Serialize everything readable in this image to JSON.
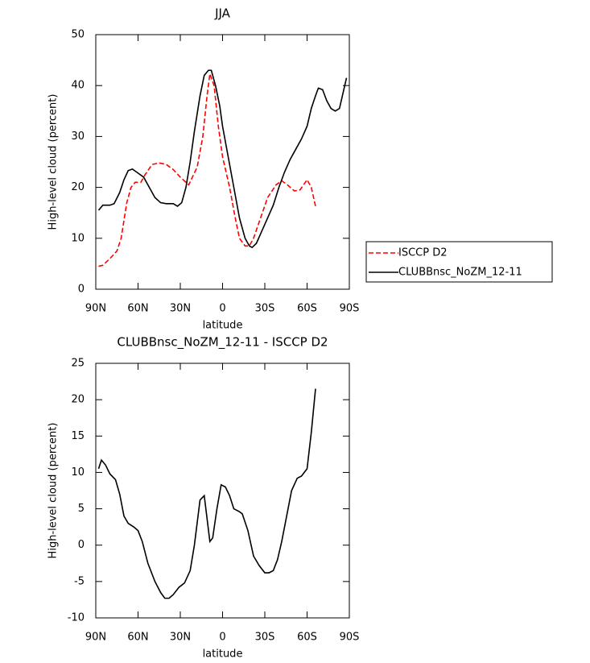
{
  "chart_data": [
    {
      "type": "line",
      "title": "JJA",
      "xlabel": "latitude",
      "ylabel": "High-level cloud (percent)",
      "xlim": [
        90,
        -90
      ],
      "ylim": [
        0,
        50
      ],
      "xticks": [
        {
          "value": 90,
          "label": "90N"
        },
        {
          "value": 60,
          "label": "60N"
        },
        {
          "value": 30,
          "label": "30N"
        },
        0,
        {
          "value": -30,
          "label": "30S"
        },
        {
          "value": -60,
          "label": "60S"
        },
        {
          "value": -90,
          "label": "90S"
        }
      ],
      "yticks": [
        0,
        10,
        20,
        30,
        40,
        50
      ],
      "legend": "right",
      "series": [
        {
          "name": "ISCCP D2",
          "color": "#ff0000",
          "linestyle": "dashed",
          "x": [
            88,
            85,
            80,
            75,
            72,
            68,
            65,
            62,
            58,
            55,
            50,
            45,
            40,
            35,
            30,
            24,
            18,
            14,
            11,
            9,
            6,
            3,
            0,
            -5,
            -9,
            -12,
            -16,
            -19,
            -22,
            -27,
            -32,
            -38,
            -42,
            -46,
            -51,
            -55,
            -60,
            -63,
            -66
          ],
          "values": [
            4.5,
            4.7,
            6,
            7.5,
            10,
            17,
            20,
            21,
            21,
            22.5,
            24.5,
            24.8,
            24.5,
            23.5,
            22,
            20.5,
            24,
            30,
            38,
            42.3,
            40,
            32,
            26,
            20,
            14,
            10,
            8.5,
            8.5,
            10,
            14,
            18,
            20.5,
            21.3,
            20.5,
            19.3,
            19.5,
            21.5,
            20,
            16.3
          ]
        },
        {
          "name": "CLUBBnsc_NoZM_12-11",
          "color": "#000000",
          "linestyle": "solid",
          "x": [
            88,
            85,
            80,
            77,
            73,
            70,
            67,
            64,
            60,
            56,
            52,
            48,
            44,
            40,
            35,
            32,
            29,
            26,
            23,
            20,
            16,
            13,
            10,
            8,
            5,
            2,
            0,
            -4,
            -8,
            -12,
            -16,
            -19,
            -21,
            -24,
            -28,
            -32,
            -36,
            -40,
            -44,
            -48,
            -52,
            -56,
            -60,
            -63,
            -66,
            -68,
            -71,
            -74,
            -77,
            -80,
            -83,
            -88
          ],
          "values": [
            15.5,
            16.5,
            16.5,
            16.8,
            19,
            21.5,
            23.3,
            23.6,
            22.8,
            22,
            20,
            18,
            17,
            16.8,
            16.8,
            16.3,
            17,
            20,
            25,
            31,
            38,
            42,
            43,
            43,
            40,
            36,
            32,
            26,
            20,
            14,
            10,
            8.5,
            8.2,
            9,
            11.5,
            14,
            16.5,
            20,
            23,
            25.5,
            27.5,
            29.5,
            32,
            35.5,
            38,
            39.5,
            39.2,
            37,
            35.5,
            35,
            35.5,
            41.5
          ]
        }
      ]
    },
    {
      "type": "line",
      "title": "CLUBBnsc_NoZM_12-11 - ISCCP D2",
      "xlabel": "latitude",
      "ylabel": "High-level cloud (percent)",
      "xlim": [
        90,
        -90
      ],
      "ylim": [
        -10,
        25
      ],
      "xticks": [
        {
          "value": 90,
          "label": "90N"
        },
        {
          "value": 60,
          "label": "60N"
        },
        {
          "value": 30,
          "label": "30N"
        },
        0,
        {
          "value": -30,
          "label": "30S"
        },
        {
          "value": -60,
          "label": "60S"
        },
        {
          "value": -90,
          "label": "90S"
        }
      ],
      "yticks": [
        -10,
        -5,
        0,
        5,
        10,
        15,
        20,
        25
      ],
      "color": "#000000",
      "x": [
        88,
        86,
        83,
        80,
        76,
        73,
        70,
        67,
        63,
        60,
        57,
        53,
        48,
        44,
        41,
        38,
        35,
        31,
        27,
        23,
        20,
        16,
        13,
        9,
        7,
        4,
        1,
        -2,
        -5,
        -8,
        -12,
        -14,
        -18,
        -22,
        -26,
        -30,
        -33,
        -36,
        -39,
        -42,
        -45,
        -49,
        -53,
        -56,
        -60,
        -63,
        -66
      ],
      "values": [
        10.5,
        11.7,
        11,
        9.8,
        9,
        7,
        4,
        3,
        2.5,
        2,
        0.5,
        -2.5,
        -5,
        -6.5,
        -7.3,
        -7.3,
        -6.8,
        -5.8,
        -5.2,
        -3.5,
        0,
        6.2,
        6.8,
        0.5,
        1,
        5,
        8.3,
        8,
        6.8,
        5,
        4.6,
        4.3,
        2,
        -1.5,
        -2.8,
        -3.8,
        -3.8,
        -3.5,
        -2,
        0.5,
        3.5,
        7.5,
        9.2,
        9.5,
        10.5,
        15.5,
        21.5
      ]
    }
  ]
}
